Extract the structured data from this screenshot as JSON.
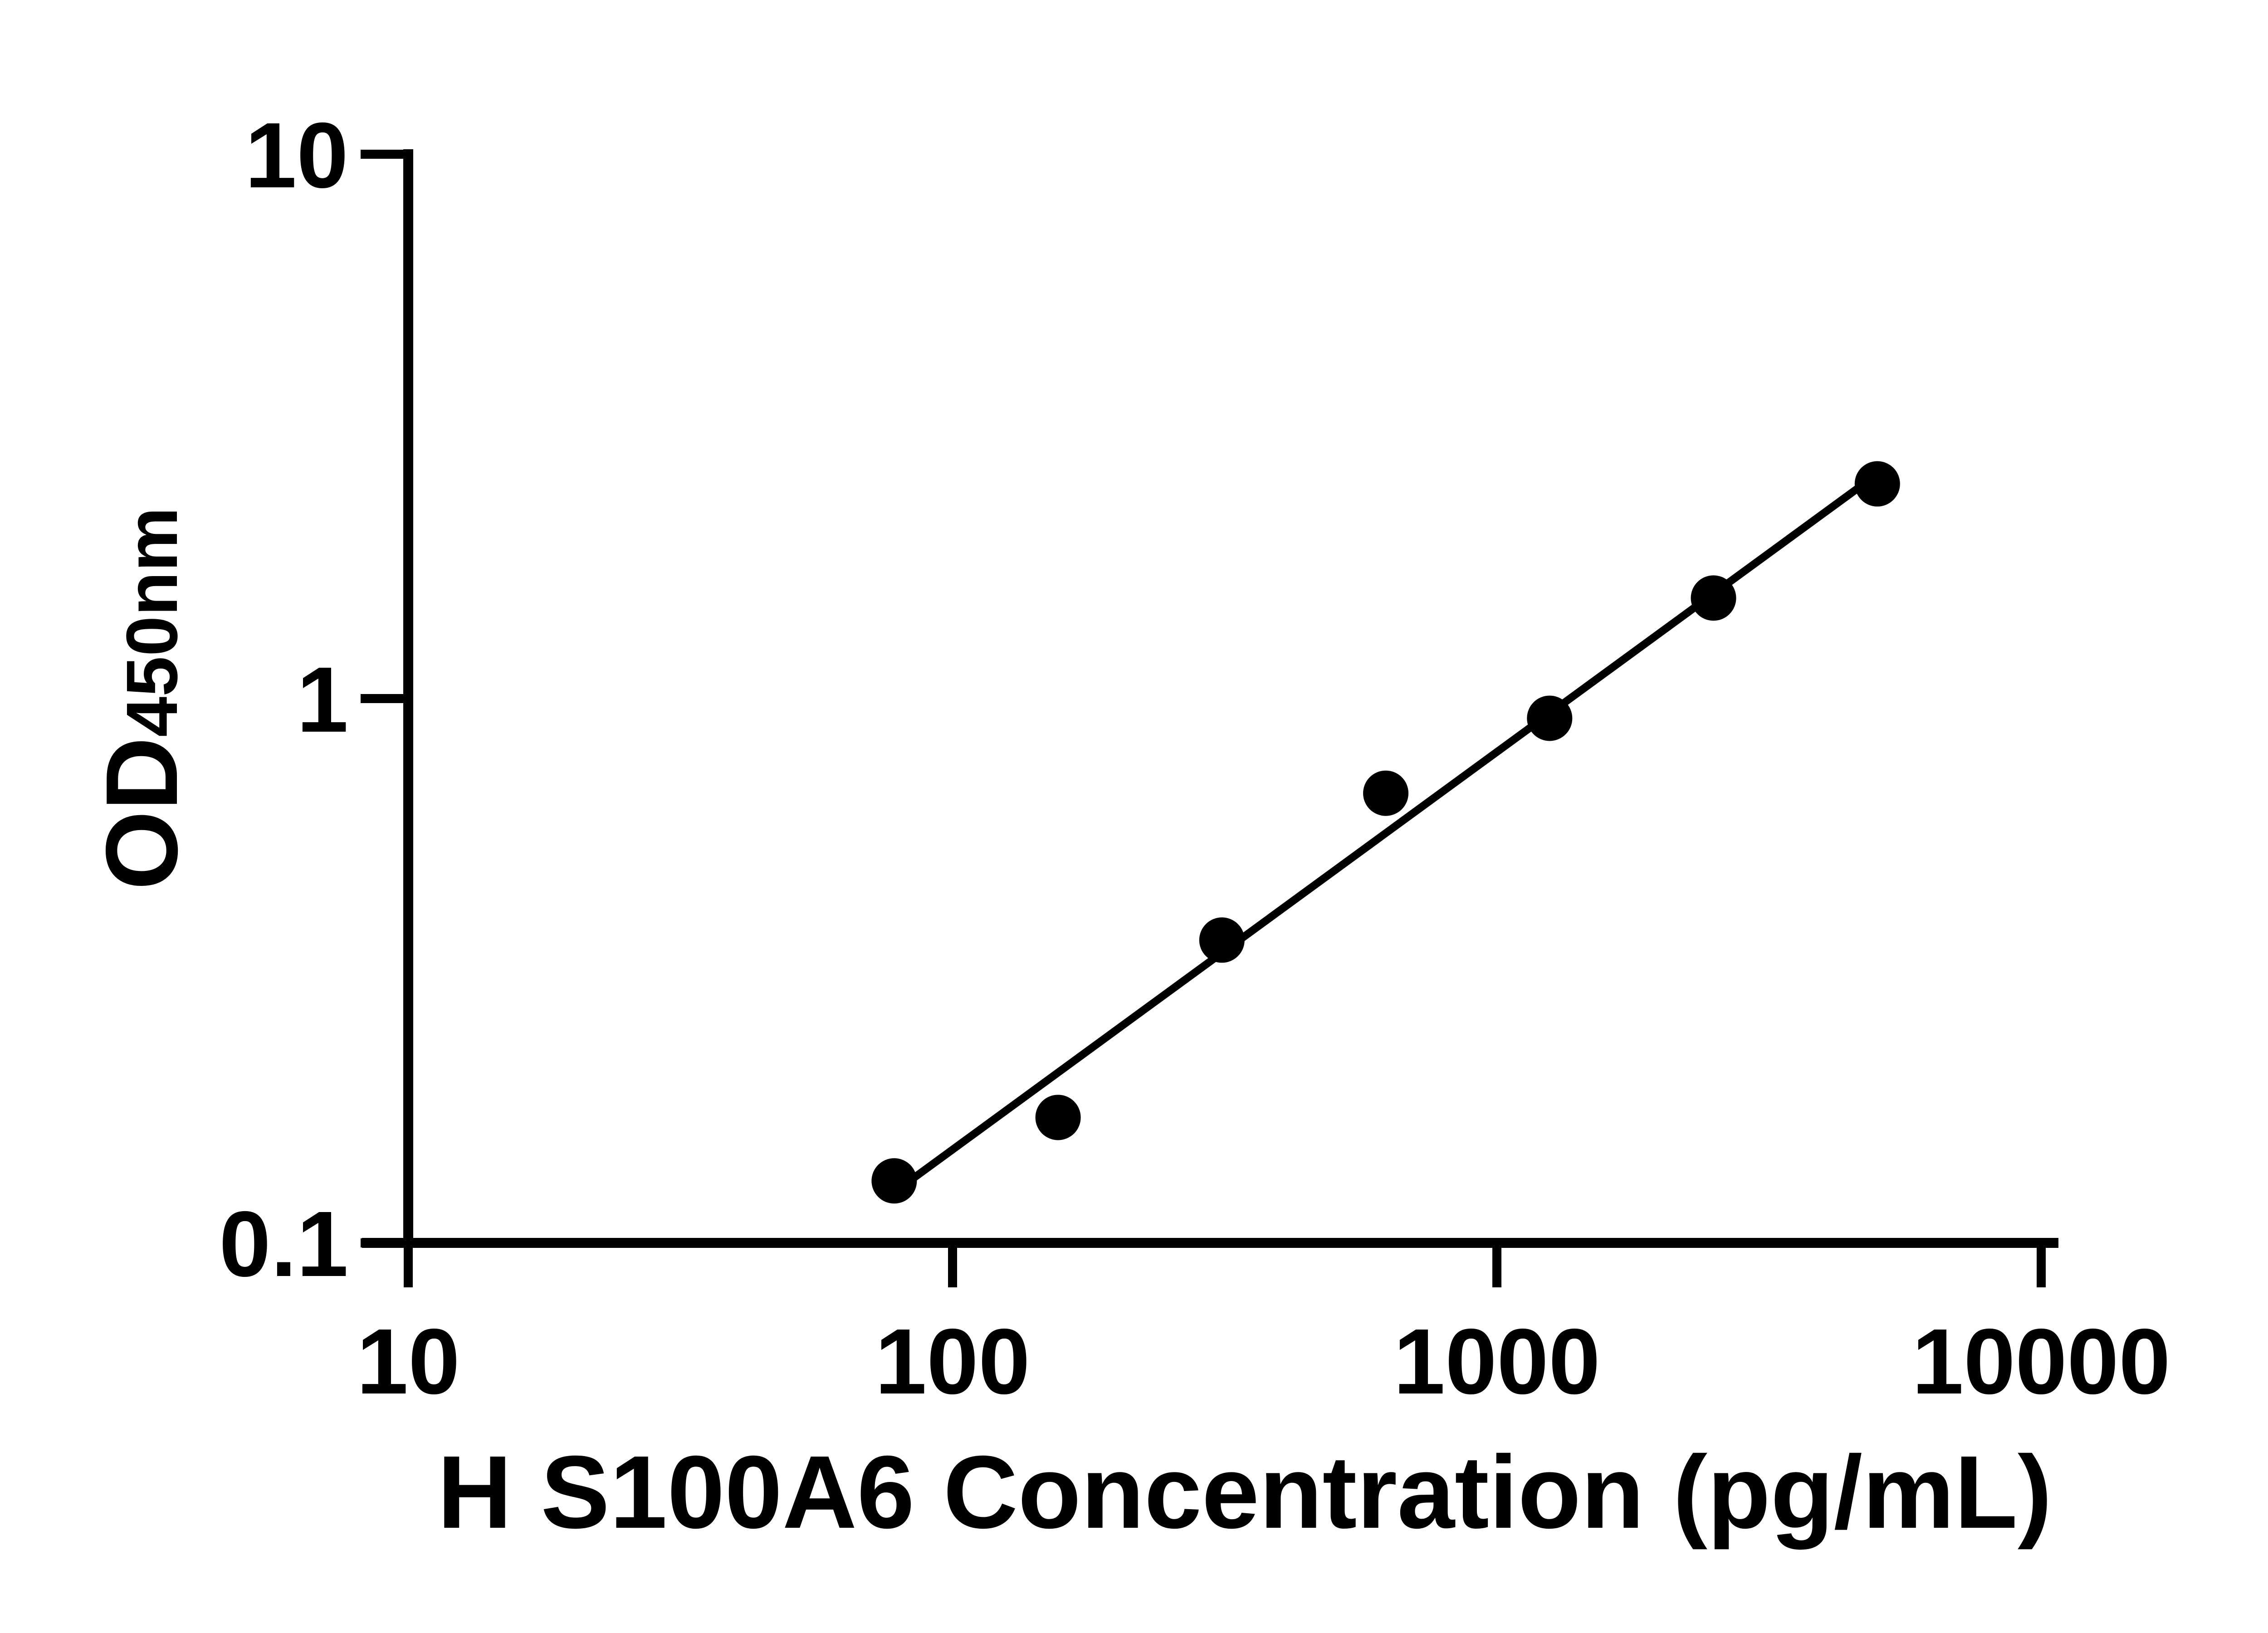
{
  "chart_data": {
    "type": "scatter",
    "subtype": "log-log standard curve with linear fit line",
    "title": "",
    "xlabel": "H S100A6 Concentration (pg/mL)",
    "ylabel": {
      "main": "OD",
      "sub": "450nm"
    },
    "x_axis": {
      "scale": "log10",
      "min": 10,
      "max": 10000,
      "ticks": [
        {
          "value": 10,
          "label": "10"
        },
        {
          "value": 100,
          "label": "100"
        },
        {
          "value": 1000,
          "label": "1000"
        },
        {
          "value": 10000,
          "label": "10000"
        }
      ]
    },
    "y_axis": {
      "scale": "log10",
      "min": 0.1,
      "max": 10,
      "ticks": [
        {
          "value": 0.1,
          "label": "0.1"
        },
        {
          "value": 1,
          "label": "1"
        },
        {
          "value": 10,
          "label": "10"
        }
      ]
    },
    "grid": false,
    "legend": false,
    "series": [
      {
        "name": "standard-curve-points",
        "marker": "filled-circle",
        "color": "#000000",
        "points": [
          {
            "x": 78.125,
            "y": 0.13
          },
          {
            "x": 156.25,
            "y": 0.17
          },
          {
            "x": 312.5,
            "y": 0.36
          },
          {
            "x": 625,
            "y": 0.67
          },
          {
            "x": 1250,
            "y": 0.92
          },
          {
            "x": 2500,
            "y": 1.53
          },
          {
            "x": 5000,
            "y": 2.48
          }
        ]
      }
    ],
    "trendline": {
      "type": "least-squares linear fit in log-log space",
      "x_start": 78.125,
      "x_end": 5000,
      "color": "#000000"
    }
  }
}
